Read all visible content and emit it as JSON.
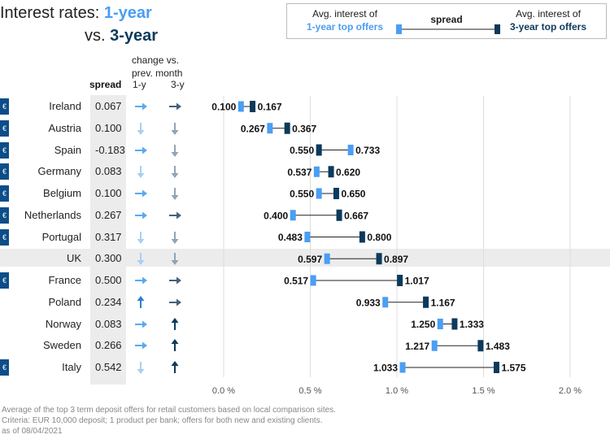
{
  "title": {
    "line1_prefix": "Interest rates: ",
    "line1_em": "1-year",
    "line2_prefix": "vs. ",
    "line2_em": "3-year"
  },
  "legend": {
    "left_line1": "Avg. interest of",
    "left_line2": "1-year top offers",
    "middle": "spread",
    "right_line1": "Avg. interest of",
    "right_line2": "3-year top offers"
  },
  "headers": {
    "change": "change vs.\nprev. month",
    "spread": "spread",
    "col_1y": "1-y",
    "col_3y": "3-y"
  },
  "euro_symbol": "€",
  "colors": {
    "one_year": "#4a9ef4",
    "three_year": "#0b3a5c",
    "arrow_light": "#a8cff5",
    "arrow_mid": "#5aa9f0",
    "arrow_dark": "#46627a",
    "euro_badge": "#0d4d8a",
    "grid": "#dddddd",
    "highlight_band": "#ececec"
  },
  "chart_data": {
    "type": "dumbbell",
    "x_ticks": [
      0.0,
      0.5,
      1.0,
      1.5,
      2.0
    ],
    "x_tick_labels": [
      "0.0 %",
      "0.5 %",
      "1.0 %",
      "1.5 %",
      "2.0 %"
    ],
    "xlim": [
      0.0,
      2.0
    ],
    "grid": true,
    "rows": [
      {
        "country": "Ireland",
        "euro": true,
        "spread": "0.067",
        "one_year": 0.1,
        "one_year_label": "0.100",
        "three_year": 0.167,
        "three_year_label": "0.167",
        "change_1y": "right",
        "change_3y": "right"
      },
      {
        "country": "Austria",
        "euro": true,
        "spread": "0.100",
        "one_year": 0.267,
        "one_year_label": "0.267",
        "three_year": 0.367,
        "three_year_label": "0.367",
        "change_1y": "down",
        "change_3y": "down"
      },
      {
        "country": "Spain",
        "euro": true,
        "spread": "-0.183",
        "one_year": 0.733,
        "one_year_label": "0.733",
        "three_year": 0.55,
        "three_year_label": "0.550",
        "change_1y": "right",
        "change_3y": "down"
      },
      {
        "country": "Germany",
        "euro": true,
        "spread": "0.083",
        "one_year": 0.537,
        "one_year_label": "0.537",
        "three_year": 0.62,
        "three_year_label": "0.620",
        "change_1y": "down",
        "change_3y": "down"
      },
      {
        "country": "Belgium",
        "euro": true,
        "spread": "0.100",
        "one_year": 0.55,
        "one_year_label": "0.550",
        "three_year": 0.65,
        "three_year_label": "0.650",
        "change_1y": "right",
        "change_3y": "down"
      },
      {
        "country": "Netherlands",
        "euro": true,
        "spread": "0.267",
        "one_year": 0.4,
        "one_year_label": "0.400",
        "three_year": 0.667,
        "three_year_label": "0.667",
        "change_1y": "right",
        "change_3y": "right"
      },
      {
        "country": "Portugal",
        "euro": true,
        "spread": "0.317",
        "one_year": 0.483,
        "one_year_label": "0.483",
        "three_year": 0.8,
        "three_year_label": "0.800",
        "change_1y": "down",
        "change_3y": "down"
      },
      {
        "country": "UK",
        "euro": false,
        "spread": "0.300",
        "one_year": 0.597,
        "one_year_label": "0.597",
        "three_year": 0.897,
        "three_year_label": "0.897",
        "change_1y": "down",
        "change_3y": "down"
      },
      {
        "country": "France",
        "euro": true,
        "spread": "0.500",
        "one_year": 0.517,
        "one_year_label": "0.517",
        "three_year": 1.017,
        "three_year_label": "1.017",
        "change_1y": "right",
        "change_3y": "right"
      },
      {
        "country": "Poland",
        "euro": false,
        "spread": "0.234",
        "one_year": 0.933,
        "one_year_label": "0.933",
        "three_year": 1.167,
        "three_year_label": "1.167",
        "change_1y": "up",
        "change_3y": "right"
      },
      {
        "country": "Norway",
        "euro": false,
        "spread": "0.083",
        "one_year": 1.25,
        "one_year_label": "1.250",
        "three_year": 1.333,
        "three_year_label": "1.333",
        "change_1y": "right",
        "change_3y": "up"
      },
      {
        "country": "Sweden",
        "euro": false,
        "spread": "0.266",
        "one_year": 1.217,
        "one_year_label": "1.217",
        "three_year": 1.483,
        "three_year_label": "1.483",
        "change_1y": "right",
        "change_3y": "up"
      },
      {
        "country": "Italy",
        "euro": true,
        "spread": "0.542",
        "one_year": 1.033,
        "one_year_label": "1.033",
        "three_year": 1.575,
        "three_year_label": "1.575",
        "change_1y": "down",
        "change_3y": "up"
      }
    ]
  },
  "footnote": {
    "line1": "Average of the top 3 term deposit offers for retail customers based on local comparison sites.",
    "line2": "Criteria: EUR 10,000 deposit; 1 product per bank; offers for both new and existing clients.",
    "line3": "as of 08/04/2021"
  }
}
